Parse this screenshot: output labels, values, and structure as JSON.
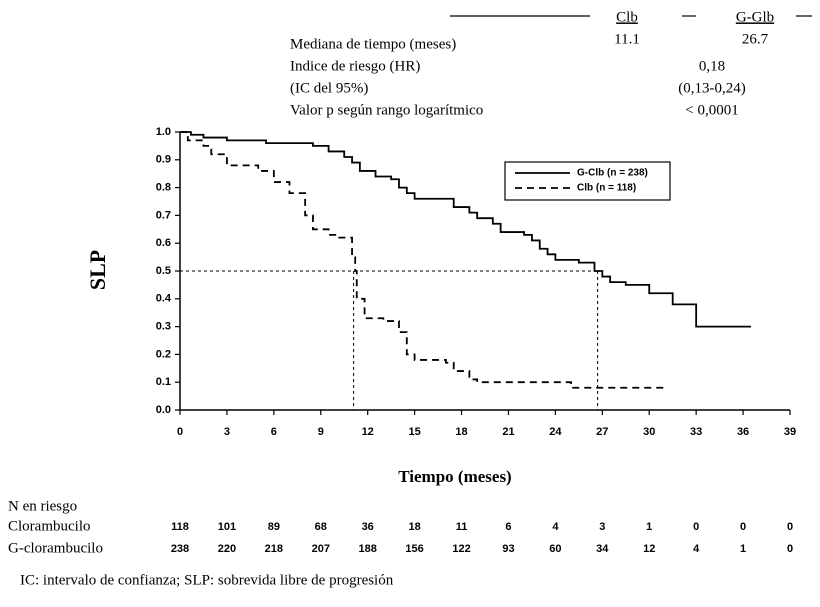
{
  "summary_table": {
    "columns": [
      "Clb",
      "G-Glb"
    ],
    "rows": [
      {
        "label": "Mediana de tiempo (meses)",
        "values": [
          "11.1",
          "26.7"
        ]
      },
      {
        "label": "Indice de riesgo (HR)",
        "value": "0,18"
      },
      {
        "label": "(IC del 95%)",
        "value": "(0,13-0,24)"
      },
      {
        "label": "Valor p según rango logarítmico",
        "value": "< 0,0001"
      }
    ]
  },
  "chart_data": {
    "type": "step",
    "xlabel": "Tiempo (meses)",
    "ylabel": "SLP",
    "xlim": [
      0,
      39
    ],
    "ylim": [
      0,
      1
    ],
    "xticks": [
      0,
      3,
      6,
      9,
      12,
      15,
      18,
      21,
      24,
      27,
      30,
      33,
      36,
      39
    ],
    "yticks": [
      {
        "value": 0,
        "label": "0.0"
      },
      0.1,
      0.2,
      0.3,
      0.4,
      0.5,
      0.6,
      0.7,
      0.8,
      0.9,
      {
        "value": 1,
        "label": "1.0"
      }
    ],
    "median_lines": {
      "y": 0.5,
      "x": [
        11.1,
        26.7
      ]
    },
    "legend": "upper right",
    "series": [
      {
        "name": "G-Clb (n = 238)",
        "color": "#000000",
        "line_style": "solid",
        "x": [
          0,
          0.7,
          1.5,
          3,
          5.5,
          8.5,
          9.5,
          10.5,
          11,
          11.5,
          12.5,
          13.5,
          14,
          14.5,
          15,
          17,
          17.5,
          18.5,
          19,
          20,
          20.5,
          22,
          22.5,
          23,
          23.5,
          24,
          25.5,
          26.5,
          27,
          27.5,
          28.5,
          30,
          31.5,
          33,
          36.5
        ],
        "values": [
          1,
          0.99,
          0.98,
          0.97,
          0.96,
          0.95,
          0.93,
          0.91,
          0.89,
          0.86,
          0.84,
          0.83,
          0.8,
          0.78,
          0.76,
          0.76,
          0.73,
          0.71,
          0.69,
          0.67,
          0.64,
          0.63,
          0.61,
          0.58,
          0.56,
          0.54,
          0.53,
          0.5,
          0.48,
          0.46,
          0.45,
          0.42,
          0.38,
          0.3,
          0.3
        ]
      },
      {
        "name": "Clb (n = 118)",
        "color": "#000000",
        "line_style": "dashed",
        "x": [
          0,
          0.5,
          1.5,
          2,
          3,
          5,
          6,
          7,
          8,
          8.5,
          9.5,
          10,
          11,
          11.2,
          11.3,
          11.8,
          13,
          14,
          14.5,
          15,
          17,
          17.5,
          18.5,
          19,
          24,
          25,
          31
        ],
        "values": [
          1,
          0.97,
          0.95,
          0.92,
          0.88,
          0.86,
          0.82,
          0.78,
          0.7,
          0.65,
          0.63,
          0.62,
          0.55,
          0.5,
          0.4,
          0.33,
          0.32,
          0.28,
          0.2,
          0.18,
          0.17,
          0.14,
          0.11,
          0.1,
          0.1,
          0.08,
          0.08
        ]
      }
    ]
  },
  "risk_table": {
    "title": "N en riesgo",
    "rows": [
      {
        "label": "Clorambucilo",
        "values": [
          118,
          101,
          89,
          68,
          36,
          18,
          11,
          6,
          4,
          3,
          1,
          0,
          0,
          0
        ]
      },
      {
        "label": "G-clorambucilo",
        "values": [
          238,
          220,
          218,
          207,
          188,
          156,
          122,
          93,
          60,
          34,
          12,
          4,
          1,
          0
        ]
      }
    ]
  },
  "footnote": "IC: intervalo de confianza; SLP: sobrevida libre de progresión"
}
